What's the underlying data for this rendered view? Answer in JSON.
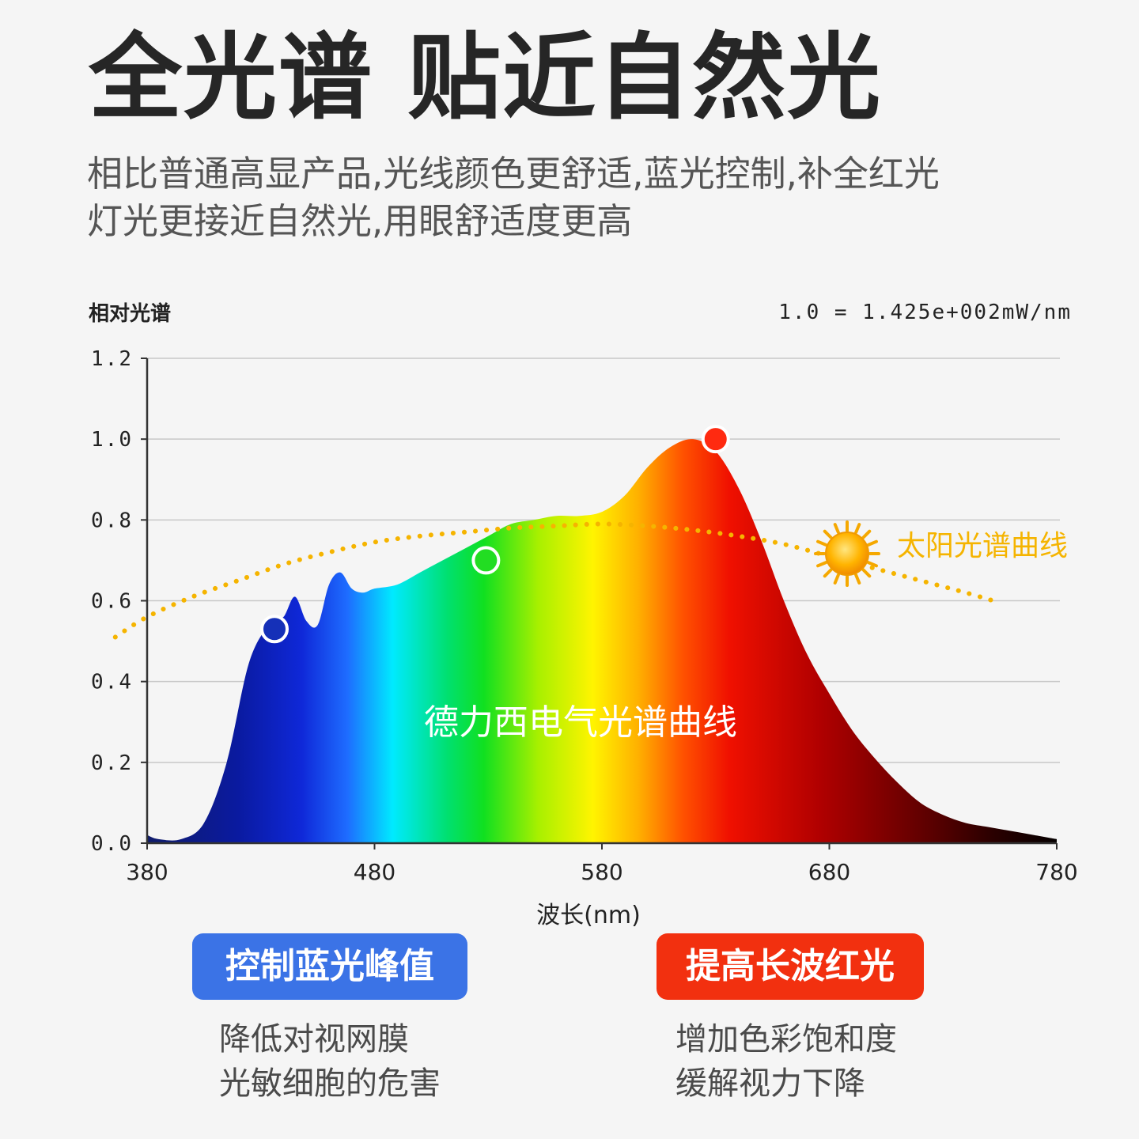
{
  "header": {
    "title": "全光谱 贴近自然光",
    "subtitle_lines": [
      "相比普通高显产品,光线颜色更舒适,蓝光控制,补全红光",
      "灯光更接近自然光,用眼舒适度更高"
    ]
  },
  "chart_data": {
    "type": "area",
    "ylabel": "相对光谱",
    "xlabel": "波长(nm)",
    "scale_note": "1.0 = 1.425e+002mW/nm",
    "xlim": [
      380,
      780
    ],
    "ylim": [
      0,
      1.2
    ],
    "x_ticks": [
      "380",
      "480",
      "580",
      "680",
      "780"
    ],
    "y_ticks": [
      "0.0",
      "0.2",
      "0.4",
      "0.6",
      "0.8",
      "1.0",
      "1.2"
    ],
    "grid": true,
    "series": [
      {
        "name": "德力西电气光谱曲线",
        "style": "rainbow-filled-area",
        "x": [
          380,
          385,
          395,
          405,
          415,
          425,
          435,
          440,
          445,
          450,
          455,
          460,
          465,
          470,
          475,
          480,
          490,
          500,
          510,
          520,
          530,
          540,
          550,
          560,
          570,
          580,
          590,
          600,
          610,
          620,
          630,
          640,
          650,
          660,
          670,
          680,
          690,
          700,
          710,
          720,
          730,
          740,
          750,
          760,
          770,
          780
        ],
        "y": [
          0.02,
          0.01,
          0.01,
          0.05,
          0.2,
          0.45,
          0.55,
          0.56,
          0.61,
          0.55,
          0.54,
          0.64,
          0.67,
          0.63,
          0.62,
          0.63,
          0.64,
          0.67,
          0.7,
          0.73,
          0.76,
          0.79,
          0.8,
          0.81,
          0.81,
          0.82,
          0.86,
          0.93,
          0.98,
          1.0,
          0.97,
          0.88,
          0.75,
          0.6,
          0.47,
          0.37,
          0.28,
          0.21,
          0.15,
          0.1,
          0.07,
          0.05,
          0.04,
          0.03,
          0.02,
          0.01
        ]
      },
      {
        "name": "太阳光谱曲线",
        "style": "dotted-line",
        "x": [
          366,
          380,
          400,
          420,
          440,
          460,
          480,
          500,
          520,
          540,
          560,
          580,
          600,
          620,
          640,
          660,
          680,
          700,
          720,
          740,
          755
        ],
        "y": [
          0.51,
          0.56,
          0.61,
          0.65,
          0.69,
          0.72,
          0.745,
          0.76,
          0.77,
          0.78,
          0.785,
          0.79,
          0.785,
          0.775,
          0.76,
          0.74,
          0.71,
          0.68,
          0.65,
          0.62,
          0.595
        ]
      }
    ],
    "markers": [
      {
        "x": 436,
        "y": 0.53,
        "color": "#1530b8"
      },
      {
        "x": 529,
        "y": 0.7,
        "color": "#22dd22"
      },
      {
        "x": 630,
        "y": 1.0,
        "color": "#ff2a10"
      }
    ],
    "colors": {
      "sun_curve": "#f5b400",
      "sun_label": "#f5b400"
    }
  },
  "cards": [
    {
      "badge": "控制蓝光峰值",
      "badge_color": "#3b73e6",
      "lines": [
        "降低对视网膜",
        "光敏细胞的危害"
      ]
    },
    {
      "badge": "提高长波红光",
      "badge_color": "#f2300f",
      "lines": [
        "增加色彩饱和度",
        "缓解视力下降"
      ]
    }
  ]
}
